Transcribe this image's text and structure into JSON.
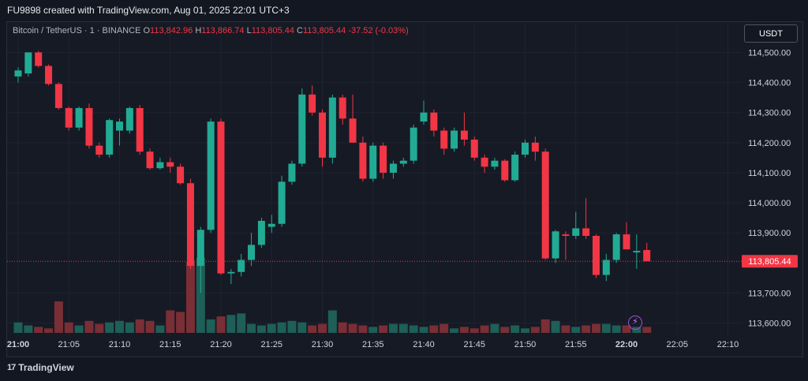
{
  "caption": "FU9898 created with TradingView.com, Aug 01, 2025 22:01 UTC+3",
  "legend": {
    "symbol": "Bitcoin / TetherUS · 1 · BINANCE",
    "o_label": "O",
    "o_value": "113,842.96",
    "h_label": "H",
    "h_value": "113,866.74",
    "l_label": "L",
    "l_value": "113,805.44",
    "c_label": "C",
    "c_value": "113,805.44",
    "change": "-37.52 (-0.03%)"
  },
  "currency_button": "USDT",
  "logo_text": "TradingView",
  "logo_mark": "17",
  "colors": {
    "up": "#22ab94",
    "down": "#f23645",
    "up_volume": "#1e5f57",
    "down_volume": "#7a2e35",
    "grid": "#1f2330",
    "price_line": "#f23645"
  },
  "chart_data": {
    "type": "candlestick",
    "symbol": "Bitcoin / TetherUS",
    "interval": "1",
    "exchange": "BINANCE",
    "ylim": [
      113570,
      114530
    ],
    "y_ticks": [
      {
        "value": 114500,
        "label": "114,500.00"
      },
      {
        "value": 114400,
        "label": "114,400.00"
      },
      {
        "value": 114300,
        "label": "114,300.00"
      },
      {
        "value": 114200,
        "label": "114,200.00"
      },
      {
        "value": 114100,
        "label": "114,100.00"
      },
      {
        "value": 114000,
        "label": "114,000.00"
      },
      {
        "value": 113900,
        "label": "113,900.00"
      },
      {
        "value": 113700,
        "label": "113,700.00"
      },
      {
        "value": 113600,
        "label": "113,600.00"
      }
    ],
    "x_ticks": [
      {
        "index": 0,
        "label": "21:00"
      },
      {
        "index": 5,
        "label": "21:05"
      },
      {
        "index": 10,
        "label": "21:10"
      },
      {
        "index": 15,
        "label": "21:15"
      },
      {
        "index": 20,
        "label": "21:20"
      },
      {
        "index": 25,
        "label": "21:25"
      },
      {
        "index": 30,
        "label": "21:30"
      },
      {
        "index": 35,
        "label": "21:35"
      },
      {
        "index": 40,
        "label": "21:40"
      },
      {
        "index": 45,
        "label": "21:45"
      },
      {
        "index": 50,
        "label": "21:50"
      },
      {
        "index": 55,
        "label": "21:55"
      },
      {
        "index": 60,
        "label": "22:00"
      },
      {
        "index": 65,
        "label": "22:05"
      },
      {
        "index": 70,
        "label": "22:10"
      }
    ],
    "current_price": {
      "value": 113805.44,
      "label": "113,805.44"
    },
    "candles": [
      {
        "o": 114420,
        "h": 114450,
        "l": 114400,
        "c": 114440,
        "v": 14
      },
      {
        "o": 114430,
        "h": 114500,
        "l": 114420,
        "c": 114500,
        "v": 10
      },
      {
        "o": 114500,
        "h": 114505,
        "l": 114450,
        "c": 114455,
        "v": 8
      },
      {
        "o": 114455,
        "h": 114460,
        "l": 114390,
        "c": 114395,
        "v": 6
      },
      {
        "o": 114395,
        "h": 114400,
        "l": 114310,
        "c": 114315,
        "v": 42
      },
      {
        "o": 114315,
        "h": 114320,
        "l": 114240,
        "c": 114250,
        "v": 14
      },
      {
        "o": 114250,
        "h": 114320,
        "l": 114240,
        "c": 114315,
        "v": 10
      },
      {
        "o": 114315,
        "h": 114330,
        "l": 114180,
        "c": 114190,
        "v": 16
      },
      {
        "o": 114190,
        "h": 114200,
        "l": 114150,
        "c": 114160,
        "v": 12
      },
      {
        "o": 114160,
        "h": 114280,
        "l": 114150,
        "c": 114275,
        "v": 14
      },
      {
        "o": 114240,
        "h": 114280,
        "l": 114190,
        "c": 114270,
        "v": 16
      },
      {
        "o": 114240,
        "h": 114320,
        "l": 114230,
        "c": 114315,
        "v": 14
      },
      {
        "o": 114315,
        "h": 114325,
        "l": 114160,
        "c": 114170,
        "v": 18
      },
      {
        "o": 114170,
        "h": 114180,
        "l": 114110,
        "c": 114115,
        "v": 16
      },
      {
        "o": 114115,
        "h": 114150,
        "l": 114110,
        "c": 114135,
        "v": 10
      },
      {
        "o": 114135,
        "h": 114150,
        "l": 114100,
        "c": 114120,
        "v": 30
      },
      {
        "o": 114120,
        "h": 114130,
        "l": 114060,
        "c": 114065,
        "v": 28
      },
      {
        "o": 114065,
        "h": 114080,
        "l": 113780,
        "c": 113790,
        "v": 95
      },
      {
        "o": 113790,
        "h": 113920,
        "l": 113700,
        "c": 113910,
        "v": 100
      },
      {
        "o": 113910,
        "h": 114280,
        "l": 113900,
        "c": 114270,
        "v": 18
      },
      {
        "o": 114270,
        "h": 114280,
        "l": 113760,
        "c": 113765,
        "v": 22
      },
      {
        "o": 113765,
        "h": 113780,
        "l": 113730,
        "c": 113770,
        "v": 24
      },
      {
        "o": 113770,
        "h": 113830,
        "l": 113755,
        "c": 113810,
        "v": 26
      },
      {
        "o": 113810,
        "h": 113900,
        "l": 113790,
        "c": 113860,
        "v": 12
      },
      {
        "o": 113860,
        "h": 113950,
        "l": 113850,
        "c": 113940,
        "v": 10
      },
      {
        "o": 113920,
        "h": 113960,
        "l": 113900,
        "c": 113930,
        "v": 12
      },
      {
        "o": 113930,
        "h": 114090,
        "l": 113920,
        "c": 114070,
        "v": 14
      },
      {
        "o": 114070,
        "h": 114140,
        "l": 114060,
        "c": 114130,
        "v": 16
      },
      {
        "o": 114130,
        "h": 114380,
        "l": 114120,
        "c": 114360,
        "v": 14
      },
      {
        "o": 114360,
        "h": 114390,
        "l": 114290,
        "c": 114300,
        "v": 10
      },
      {
        "o": 114300,
        "h": 114310,
        "l": 114120,
        "c": 114150,
        "v": 12
      },
      {
        "o": 114150,
        "h": 114360,
        "l": 114130,
        "c": 114350,
        "v": 30
      },
      {
        "o": 114350,
        "h": 114360,
        "l": 114260,
        "c": 114280,
        "v": 14
      },
      {
        "o": 114280,
        "h": 114360,
        "l": 114200,
        "c": 114200,
        "v": 12
      },
      {
        "o": 114200,
        "h": 114220,
        "l": 114070,
        "c": 114080,
        "v": 10
      },
      {
        "o": 114080,
        "h": 114200,
        "l": 114070,
        "c": 114190,
        "v": 8
      },
      {
        "o": 114190,
        "h": 114200,
        "l": 114080,
        "c": 114100,
        "v": 10
      },
      {
        "o": 114100,
        "h": 114140,
        "l": 114080,
        "c": 114130,
        "v": 12
      },
      {
        "o": 114130,
        "h": 114150,
        "l": 114120,
        "c": 114140,
        "v": 12
      },
      {
        "o": 114140,
        "h": 114260,
        "l": 114130,
        "c": 114250,
        "v": 10
      },
      {
        "o": 114270,
        "h": 114340,
        "l": 114260,
        "c": 114300,
        "v": 8
      },
      {
        "o": 114300,
        "h": 114310,
        "l": 114220,
        "c": 114240,
        "v": 10
      },
      {
        "o": 114240,
        "h": 114250,
        "l": 114160,
        "c": 114180,
        "v": 12
      },
      {
        "o": 114180,
        "h": 114250,
        "l": 114170,
        "c": 114240,
        "v": 6
      },
      {
        "o": 114240,
        "h": 114300,
        "l": 114190,
        "c": 114210,
        "v": 8
      },
      {
        "o": 114210,
        "h": 114220,
        "l": 114140,
        "c": 114150,
        "v": 6
      },
      {
        "o": 114150,
        "h": 114160,
        "l": 114100,
        "c": 114120,
        "v": 10
      },
      {
        "o": 114120,
        "h": 114150,
        "l": 114110,
        "c": 114140,
        "v": 12
      },
      {
        "o": 114140,
        "h": 114145,
        "l": 114070,
        "c": 114075,
        "v": 8
      },
      {
        "o": 114075,
        "h": 114170,
        "l": 114070,
        "c": 114160,
        "v": 10
      },
      {
        "o": 114160,
        "h": 114210,
        "l": 114150,
        "c": 114200,
        "v": 6
      },
      {
        "o": 114200,
        "h": 114220,
        "l": 114140,
        "c": 114170,
        "v": 8
      },
      {
        "o": 114170,
        "h": 114180,
        "l": 113810,
        "c": 113815,
        "v": 18
      },
      {
        "o": 113815,
        "h": 113910,
        "l": 113800,
        "c": 113905,
        "v": 16
      },
      {
        "o": 113895,
        "h": 113905,
        "l": 113810,
        "c": 113890,
        "v": 10
      },
      {
        "o": 113890,
        "h": 113970,
        "l": 113880,
        "c": 113915,
        "v": 8
      },
      {
        "o": 113915,
        "h": 114015,
        "l": 113880,
        "c": 113890,
        "v": 10
      },
      {
        "o": 113890,
        "h": 113895,
        "l": 113750,
        "c": 113760,
        "v": 12
      },
      {
        "o": 113760,
        "h": 113830,
        "l": 113740,
        "c": 113810,
        "v": 12
      },
      {
        "o": 113810,
        "h": 113900,
        "l": 113800,
        "c": 113895,
        "v": 10
      },
      {
        "o": 113895,
        "h": 113935,
        "l": 113850,
        "c": 113845,
        "v": 10
      },
      {
        "o": 113835,
        "h": 113895,
        "l": 113780,
        "c": 113840,
        "v": 8
      },
      {
        "o": 113842.96,
        "h": 113866.74,
        "l": 113805.44,
        "c": 113805.44,
        "v": 8
      }
    ]
  }
}
